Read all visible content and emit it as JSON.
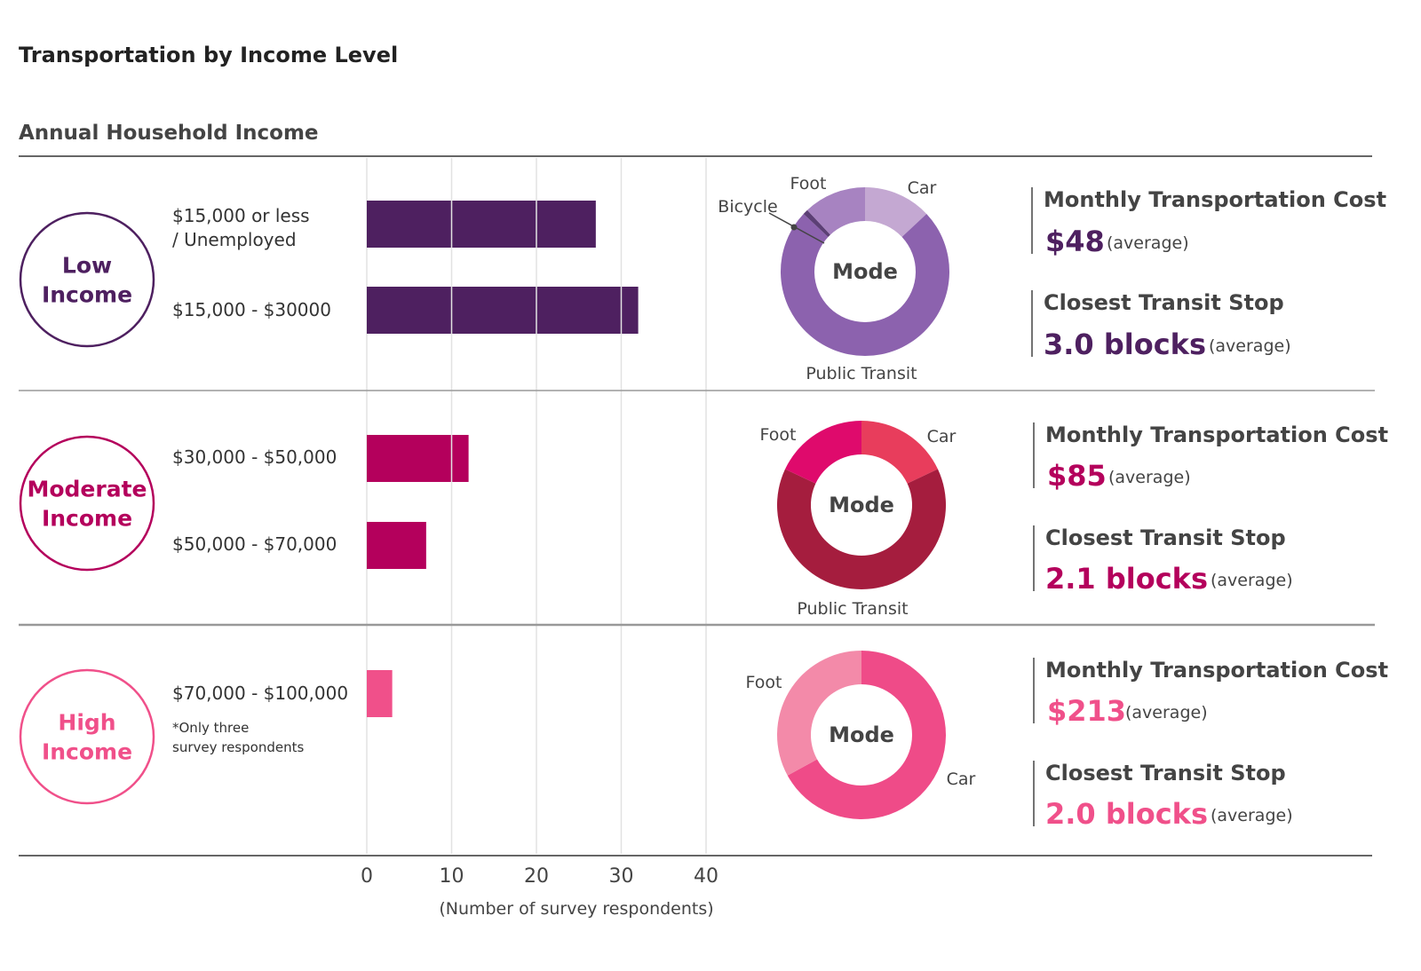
{
  "title": "Transportation by Income Level",
  "subtitle": "Annual Household Income",
  "chart_data": {
    "type": "bar",
    "orientation": "horizontal",
    "xlabel": "(Number of survey respondents)",
    "xlim": [
      0,
      40
    ],
    "xticks": [
      "0",
      "10",
      "20",
      "30",
      "40"
    ],
    "grid": true,
    "groups": [
      {
        "label_lines": [
          "Low",
          "Income"
        ],
        "color": "#4e2060",
        "categories": [
          {
            "lines": [
              "$15,000 or less",
              "/ Unemployed"
            ],
            "value": 27
          },
          {
            "lines": [
              "$15,000 - $30000"
            ],
            "value": 32
          }
        ],
        "note_lines": [],
        "mode": {
          "center_label": "Mode",
          "slices": [
            {
              "label": "Car",
              "value": 13,
              "color": "#c4a8d2"
            },
            {
              "label": "Public Transit",
              "value": 74,
              "color": "#8c62ae"
            },
            {
              "label": "Bicycle",
              "value": 1,
              "color": "#5c3f75"
            },
            {
              "label": "Foot",
              "value": 12,
              "color": "#a783c1"
            }
          ]
        },
        "cost": {
          "label": "Monthly Transportation Cost",
          "value": "$48",
          "note": "(average)"
        },
        "transit": {
          "label": "Closest Transit Stop",
          "value": "3.0 blocks",
          "note": "(average)"
        }
      },
      {
        "label_lines": [
          "Moderate",
          "Income"
        ],
        "color": "#b4005c",
        "categories": [
          {
            "lines": [
              "$30,000 - $50,000"
            ],
            "value": 12
          },
          {
            "lines": [
              "$50,000 - $70,000"
            ],
            "value": 7
          }
        ],
        "note_lines": [],
        "mode": {
          "center_label": "Mode",
          "slices": [
            {
              "label": "Car",
              "value": 18,
              "color": "#e83d5c"
            },
            {
              "label": "Public Transit",
              "value": 64,
              "color": "#a51d3e"
            },
            {
              "label": "Foot",
              "value": 18,
              "color": "#df0a6c"
            }
          ]
        },
        "cost": {
          "label": "Monthly Transportation Cost",
          "value": "$85",
          "note": "(average)"
        },
        "transit": {
          "label": "Closest Transit Stop",
          "value": "2.1 blocks",
          "note": "(average)"
        }
      },
      {
        "label_lines": [
          "High",
          "Income"
        ],
        "color": "#f0508a",
        "categories": [
          {
            "lines": [
              "$70,000 - $100,000"
            ],
            "value": 3
          }
        ],
        "note_lines": [
          "*Only three",
          " survey respondents"
        ],
        "mode": {
          "center_label": "Mode",
          "slices": [
            {
              "label": "Car",
              "value": 67,
              "color": "#ef4b88"
            },
            {
              "label": "Foot",
              "value": 33,
              "color": "#f38aa9"
            }
          ]
        },
        "cost": {
          "label": "Monthly Transportation Cost",
          "value": "$213",
          "note": "(average)"
        },
        "transit": {
          "label": "Closest Transit Stop",
          "value": "2.0 blocks",
          "note": "(average)"
        }
      }
    ]
  }
}
